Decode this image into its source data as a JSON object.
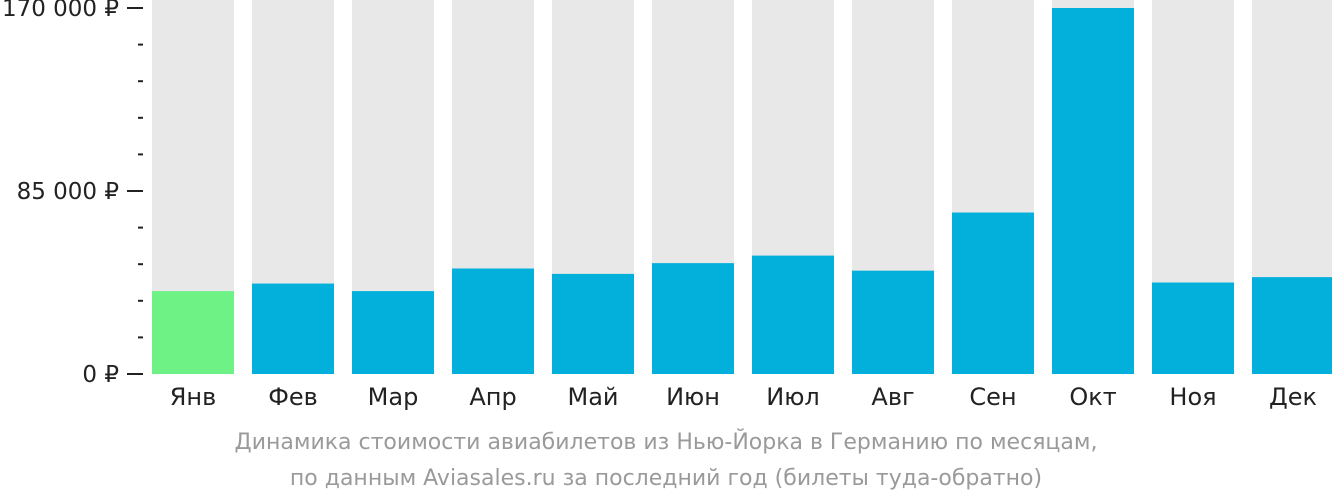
{
  "chart_data": {
    "type": "bar",
    "categories": [
      "Янв",
      "Фев",
      "Мар",
      "Апр",
      "Май",
      "Июн",
      "Июл",
      "Авг",
      "Сен",
      "Окт",
      "Ноя",
      "Дек"
    ],
    "values": [
      38500,
      42000,
      38500,
      49000,
      46500,
      51500,
      55000,
      48000,
      75000,
      172000,
      42500,
      45000
    ],
    "highlight_index": 0,
    "ylim": [
      0,
      170000
    ],
    "yticks": [
      {
        "value": 0,
        "label": "0 ₽"
      },
      {
        "value": 85000,
        "label": "85 000 ₽"
      },
      {
        "value": 170000,
        "label": "170 000 ₽"
      }
    ],
    "minor_ticks": [
      17000,
      34000,
      51000,
      68000,
      102000,
      119000,
      136000,
      153000
    ],
    "colors": {
      "bar": "#03b0dc",
      "highlight": "#6ef286",
      "track": "#e8e8e8",
      "axis_text": "#222222",
      "caption": "#9a9a9a"
    },
    "caption": {
      "line1": "Динамика стоимости авиабилетов из Нью-Йорка в Германию по месяцам,",
      "line2": "по данным Aviasales.ru за последний год (билеты туда-обратно)"
    }
  }
}
